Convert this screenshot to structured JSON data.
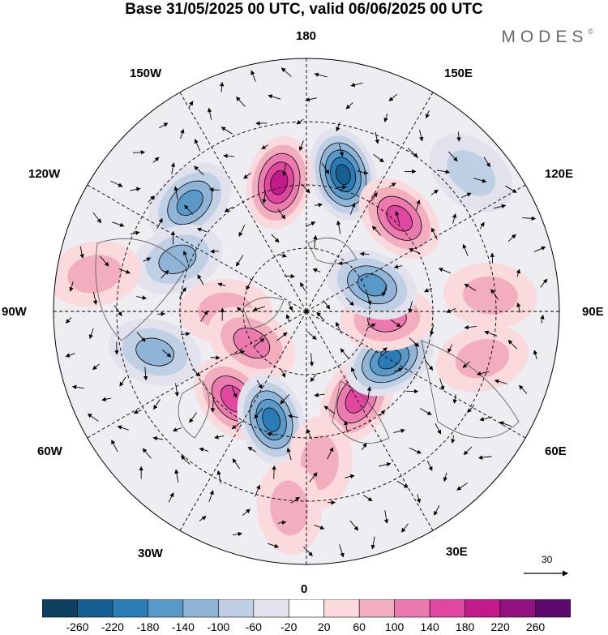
{
  "title": "Base 31/05/2025 00 UTC, valid 06/06/2025 00 UTC",
  "brand": {
    "name": "MODES",
    "mark": "©"
  },
  "longitude_labels": [
    "180",
    "150E",
    "120E",
    "90E",
    "60E",
    "30E",
    "0",
    "30W",
    "60W",
    "90W",
    "120W",
    "150W"
  ],
  "vector_scale": {
    "label": "30"
  },
  "colorbar": {
    "labels": [
      "-260",
      "-220",
      "-180",
      "-140",
      "-100",
      "-60",
      "-20",
      "20",
      "60",
      "100",
      "140",
      "180",
      "220",
      "260"
    ],
    "colors": [
      "#0e3f5e",
      "#155f92",
      "#2b7cb6",
      "#5899c8",
      "#8fb4d6",
      "#bfcfe4",
      "#e2e2ee",
      "#ffffff",
      "#fadadd",
      "#f2adbf",
      "#eb7bae",
      "#e0489f",
      "#c21a8b",
      "#91117f",
      "#5c0a6e"
    ]
  },
  "anomaly_centers": [
    {
      "lon": 165,
      "lat_dist": 0.56,
      "value": -220
    },
    {
      "lon": -168,
      "lat_dist": 0.52,
      "value": 180
    },
    {
      "lon": 135,
      "lat_dist": 0.52,
      "value": 150
    },
    {
      "lon": -133,
      "lat_dist": 0.63,
      "value": -140
    },
    {
      "lon": -112,
      "lat_dist": 0.55,
      "value": -110
    },
    {
      "lon": -90,
      "lat_dist": 0.32,
      "value": 80
    },
    {
      "lon": -60,
      "lat_dist": 0.25,
      "value": 90
    },
    {
      "lon": -40,
      "lat_dist": 0.45,
      "value": 150
    },
    {
      "lon": -18,
      "lat_dist": 0.45,
      "value": -200
    },
    {
      "lon": 30,
      "lat_dist": 0.4,
      "value": 160
    },
    {
      "lon": -75,
      "lat_dist": 0.62,
      "value": -120
    },
    {
      "lon": 60,
      "lat_dist": 0.38,
      "value": -170
    },
    {
      "lon": 85,
      "lat_dist": 0.32,
      "value": 90
    },
    {
      "lon": 112,
      "lat_dist": 0.28,
      "value": -130
    },
    {
      "lon": 95,
      "lat_dist": 0.73,
      "value": 80
    },
    {
      "lon": -100,
      "lat_dist": 0.85,
      "value": 60
    },
    {
      "lon": 75,
      "lat_dist": 0.72,
      "value": 70
    },
    {
      "lon": 5,
      "lat_dist": 0.6,
      "value": 60
    },
    {
      "lon": -5,
      "lat_dist": 0.78,
      "value": 50
    },
    {
      "lon": 130,
      "lat_dist": 0.85,
      "value": -70
    }
  ]
}
